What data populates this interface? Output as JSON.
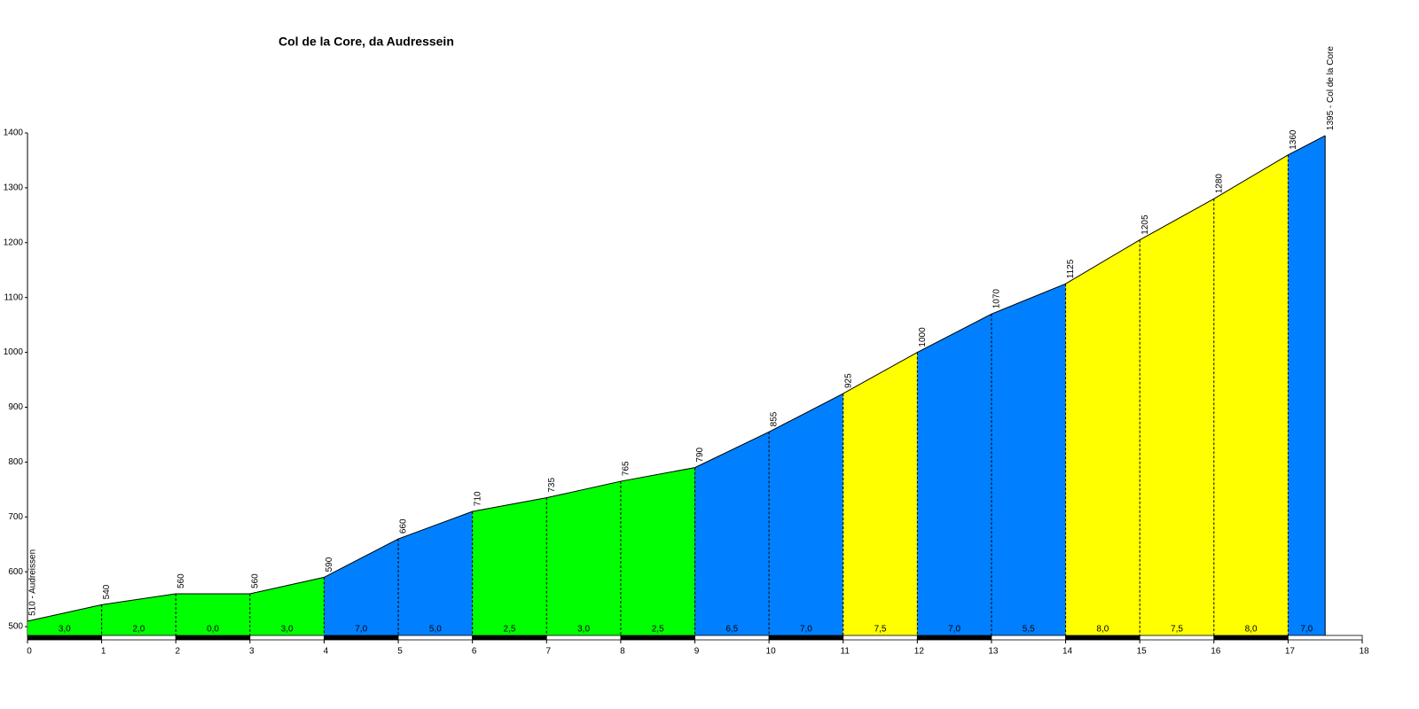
{
  "chart_data": {
    "type": "elevation-profile",
    "title": "Col de la Core, da Audressein",
    "x": [
      0,
      1,
      2,
      3,
      4,
      5,
      6,
      7,
      8,
      9,
      10,
      11,
      12,
      13,
      14,
      15,
      16,
      17,
      17.5
    ],
    "values": [
      510,
      540,
      560,
      560,
      590,
      660,
      710,
      735,
      765,
      790,
      855,
      925,
      1000,
      1070,
      1125,
      1205,
      1280,
      1360,
      1395
    ],
    "value_labels": [
      "510 - Audreissen",
      "540",
      "560",
      "560",
      "590",
      "660",
      "710",
      "735",
      "765",
      "790",
      "855",
      "925",
      "1000",
      "1070",
      "1125",
      "1205",
      "1280",
      "1360",
      "1395 - Col de la Core"
    ],
    "gradient": {
      "values": [
        3.0,
        2.0,
        0.0,
        3.0,
        7.0,
        5.0,
        2.5,
        3.0,
        2.5,
        6.5,
        7.0,
        7.5,
        7.0,
        5.5,
        8.0,
        7.5,
        8.0,
        7.0
      ],
      "value_labels": [
        "3,0",
        "2,0",
        "0,0",
        "3,0",
        "7,0",
        "5,0",
        "2,5",
        "3,0",
        "2,5",
        "6,5",
        "7,0",
        "7,5",
        "7,0",
        "5,5",
        "8,0",
        "7,5",
        "8,0",
        "7,0"
      ],
      "colors": [
        "#00ff00",
        "#00ff00",
        "#00ff00",
        "#00ff00",
        "#0080ff",
        "#0080ff",
        "#00ff00",
        "#00ff00",
        "#00ff00",
        "#0080ff",
        "#0080ff",
        "#ffff00",
        "#0080ff",
        "#0080ff",
        "#ffff00",
        "#ffff00",
        "#ffff00",
        "#0080ff"
      ]
    },
    "xlim": [
      0,
      18
    ],
    "xticks": [
      0,
      1,
      2,
      3,
      4,
      5,
      6,
      7,
      8,
      9,
      10,
      11,
      12,
      13,
      14,
      15,
      16,
      17,
      18
    ],
    "ylim": [
      484,
      1400
    ],
    "yticks": [
      500,
      600,
      700,
      800,
      900,
      1000,
      1100,
      1200,
      1300,
      1400
    ]
  }
}
